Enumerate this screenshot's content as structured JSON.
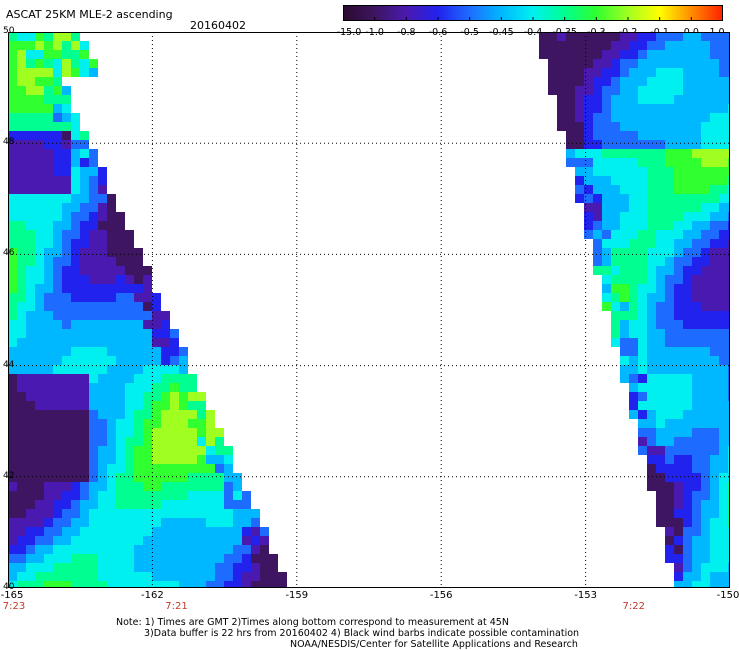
{
  "header": {
    "title": "ASCAT 25KM MLE-2 ascending",
    "date": "20160402"
  },
  "colorbar": {
    "tick_labels": [
      "-15.0",
      "-1.0",
      "-0.8",
      "-0.6",
      "-0.5",
      "-0.45",
      "-0.4",
      "-0.35",
      "-0.3",
      "-0.2",
      "-0.1",
      "0.0",
      "1.0"
    ],
    "colors": [
      "#2a0a2e",
      "#3d1560",
      "#4a1ab0",
      "#2222ee",
      "#1e6cff",
      "#00b8ff",
      "#00f0f0",
      "#00ff90",
      "#30ff30",
      "#a0ff20",
      "#ffff00",
      "#ff8c00",
      "#ff2000"
    ]
  },
  "map": {
    "lat_range": [
      40,
      50
    ],
    "lon_range": [
      -165,
      -150
    ],
    "lat_labels": [
      "50",
      "48",
      "46",
      "44",
      "42",
      "40"
    ],
    "lon_labels": [
      "-165",
      "-162",
      "-159",
      "-156",
      "-153",
      "-150"
    ],
    "time_labels": [
      {
        "lon": -165,
        "text": "7:23"
      },
      {
        "lon": -161.5,
        "text": "7:21"
      },
      {
        "lon": -152,
        "text": "7:22"
      }
    ]
  },
  "notes": {
    "line1": "Note: 1) Times are GMT 2)Times along bottom correspond to measurement at 45N",
    "line2": "3)Data buffer is 22 hrs from 20160402 4) Black wind barbs indicate possible contamination",
    "line3": "NOAA/NESDIS/Center for Satellite Applications and Research"
  }
}
